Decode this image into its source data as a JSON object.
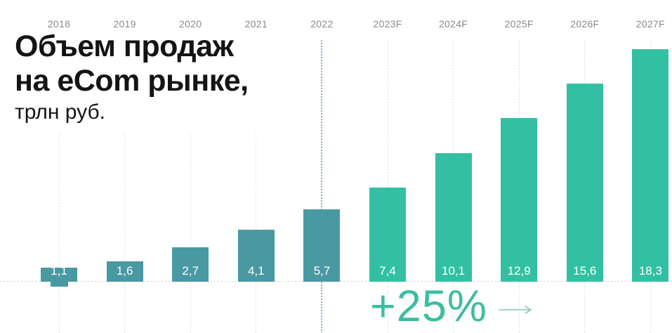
{
  "title": {
    "line1": "Объем продаж",
    "line2": "на eCom рынке,",
    "line3": "трлн руб."
  },
  "colors": {
    "historical_bar": "#4999a3",
    "forecast_bar": "#33c0a2",
    "highlight_gridline": "#79aed1",
    "gridline": "#cbcbcb",
    "baseline": "#cdcdcd",
    "year_label": "#8a8a8a",
    "value_label": "#ffffff",
    "annotation_text": "#3dbda0",
    "arrow": "#7fc9b8",
    "title_text": "#141414"
  },
  "chart_data": {
    "type": "bar",
    "title": "Объем продаж на eCom рынке, трлн руб.",
    "unit": "трлн руб.",
    "categories": [
      "2018",
      "2019",
      "2020",
      "2021",
      "2022",
      "2023F",
      "2024F",
      "2025F",
      "2026F",
      "2027F"
    ],
    "values": [
      1.1,
      1.6,
      2.7,
      4.1,
      5.7,
      7.4,
      10.1,
      12.9,
      15.6,
      18.3
    ],
    "value_labels": [
      "1,1",
      "1,6",
      "2,7",
      "4,1",
      "5,7",
      "7,4",
      "10,1",
      "12,9",
      "15,6",
      "18,3"
    ],
    "historical_categories": [
      "2018",
      "2019",
      "2020",
      "2021",
      "2022"
    ],
    "forecast_categories": [
      "2023F",
      "2024F",
      "2025F",
      "2026F",
      "2027F"
    ],
    "highlighted_category": "2022",
    "annotation": "+25%",
    "ylim": [
      0,
      19
    ],
    "grid": "vertical dotted line per category",
    "legend": "none"
  }
}
